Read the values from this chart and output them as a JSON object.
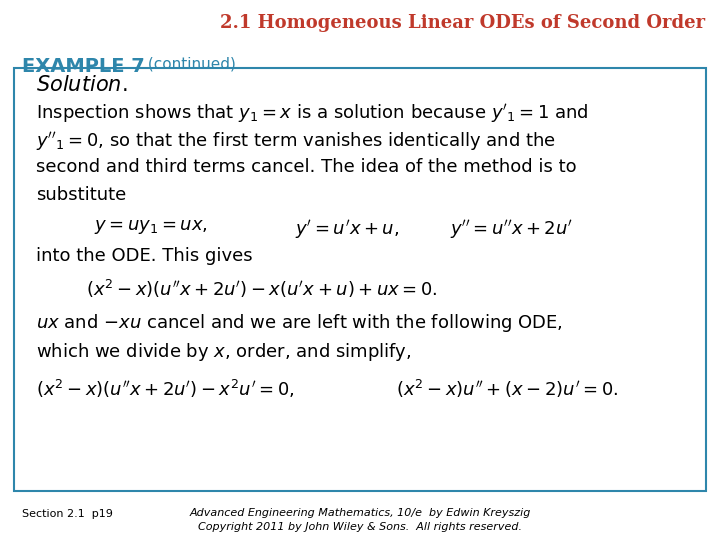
{
  "title": "2.1 Homogeneous Linear ODEs of Second Order",
  "title_color": "#C0392B",
  "title_fontsize": 13,
  "example_label": "EXAMPLE 7",
  "example_label_color": "#2E86AB",
  "example_continued": " (continued)",
  "background_color": "#FFFFFF",
  "box_color": "#2E86AB",
  "section_text": "Section 2.1  p19",
  "copyright_line1": "Advanced Engineering Mathematics, 10/e  by Edwin Kreyszig",
  "copyright_line2": "Copyright 2011 by John Wiley & Sons.  All rights reserved.",
  "footer_fontsize": 8
}
